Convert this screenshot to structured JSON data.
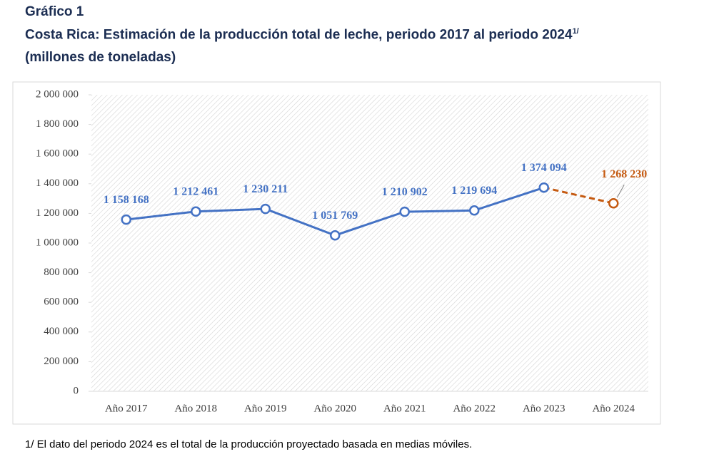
{
  "header": {
    "label": "Gráfico 1",
    "title": "Costa Rica: Estimación de la producción total de leche, periodo 2017 al periodo 2024",
    "title_note": "1/",
    "subtitle": "(millones de toneladas)"
  },
  "chart_data": {
    "type": "line",
    "categories": [
      "Año 2017",
      "Año 2018",
      "Año 2019",
      "Año 2020",
      "Año 2021",
      "Año 2022",
      "Año 2023",
      "Año 2024"
    ],
    "series": [
      {
        "color": "#4472c4",
        "dash": false,
        "values": [
          1158168,
          1212461,
          1230211,
          1051769,
          1210902,
          1219694,
          1374094,
          null
        ],
        "value_labels": [
          "1 158 168",
          "1 212 461",
          "1 230 211",
          "1 051 769",
          "1 210 902",
          "1 219 694",
          "1 374 094",
          null
        ]
      },
      {
        "color": "#c55a11",
        "dash": true,
        "values": [
          null,
          null,
          null,
          null,
          null,
          null,
          1374094,
          1268230
        ],
        "value_labels": [
          null,
          null,
          null,
          null,
          null,
          null,
          null,
          "1 268 230"
        ]
      }
    ],
    "ylim": [
      0,
      2000000
    ],
    "yticks": [
      0,
      {
        "value": 200000,
        "label": "200 000"
      },
      {
        "value": 400000,
        "label": "400 000"
      },
      {
        "value": 600000,
        "label": "600 000"
      },
      {
        "value": 800000,
        "label": "800 000"
      },
      {
        "value": 1000000,
        "label": "1 000 000"
      },
      {
        "value": 1200000,
        "label": "1 200 000"
      },
      {
        "value": 1400000,
        "label": "1 400 000"
      },
      {
        "value": 1600000,
        "label": "1 600 000"
      },
      {
        "value": 1800000,
        "label": "1 800 000"
      },
      {
        "value": 2000000,
        "label": "2 000 000"
      }
    ]
  },
  "footnote": "1/ El dato del periodo 2024 es el total de la producción proyectado basada en medias móviles."
}
